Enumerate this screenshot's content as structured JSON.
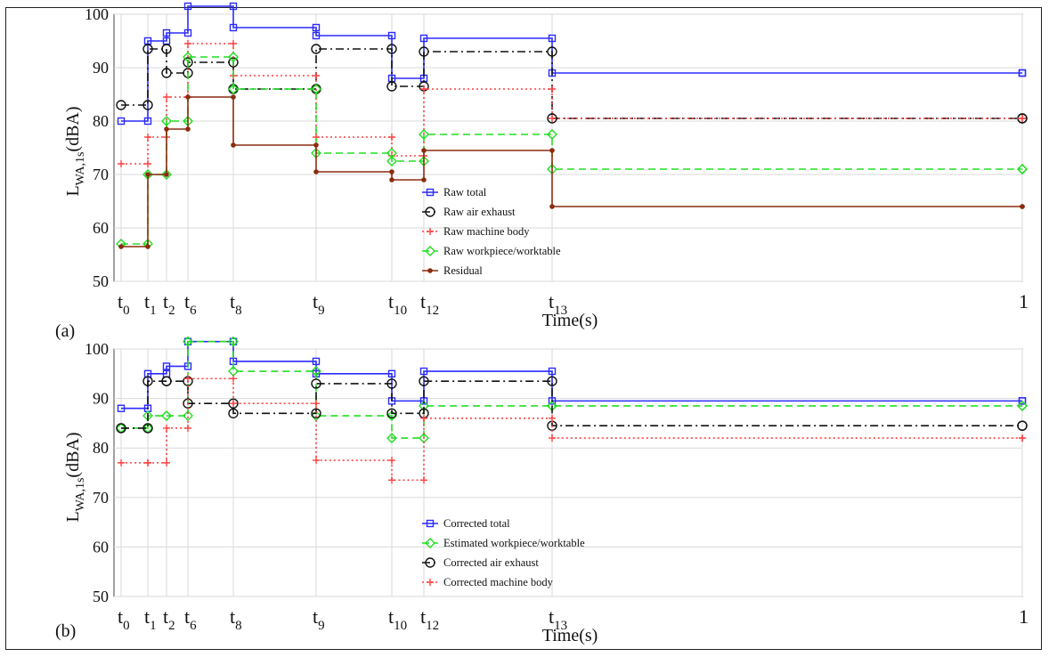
{
  "chart_data": [
    {
      "type": "line",
      "panel_label": "(a)",
      "xlabel": "Time(s)",
      "ylabel_main": "L",
      "ylabel_sub": "WA,1s",
      "ylabel_unit": "(dBA)",
      "ylim": [
        50,
        100
      ],
      "yticks": [
        "50",
        "60",
        "70",
        "80",
        "90",
        "100"
      ],
      "xtick_labels": [
        {
          "base": "t",
          "sub": "0"
        },
        {
          "base": "t",
          "sub": "1"
        },
        {
          "base": "t",
          "sub": "2"
        },
        {
          "base": "t",
          "sub": "6"
        },
        {
          "base": "t",
          "sub": "8"
        },
        {
          "base": "t",
          "sub": "9"
        },
        {
          "base": "t",
          "sub": "10"
        },
        {
          "base": "t",
          "sub": "12"
        },
        {
          "base": "t",
          "sub": "13"
        },
        {
          "base": "1",
          "sub": ""
        }
      ],
      "grid": true,
      "legend_position": "center",
      "series": [
        {
          "name": "Raw total",
          "color": "#2b2bff",
          "marker": "square",
          "style": "solid",
          "values": [
            80,
            95,
            96.5,
            101.5,
            97.5,
            96,
            88,
            95.5,
            89,
            89
          ]
        },
        {
          "name": "Raw air exhaust",
          "color": "#111111",
          "marker": "circle",
          "style": "dashdot",
          "values": [
            83,
            93.5,
            89,
            91,
            86,
            93.5,
            86.5,
            93,
            80.5,
            80.5
          ]
        },
        {
          "name": "Raw machine body",
          "color": "#ff4040",
          "marker": "plus",
          "style": "dotted",
          "values": [
            72,
            77,
            84.5,
            94.5,
            88.5,
            77,
            73.5,
            86,
            80.5,
            80.5
          ]
        },
        {
          "name": "Raw workpiece/worktable",
          "color": "#22dd22",
          "marker": "diamond",
          "style": "dashed",
          "values": [
            57,
            70,
            80,
            92,
            86,
            74,
            72.5,
            77.5,
            71,
            71
          ]
        },
        {
          "name": "Residual",
          "color": "#8b2c10",
          "marker": "dot",
          "style": "solid",
          "values": [
            56.5,
            70,
            78.5,
            84.5,
            75.5,
            70.5,
            69,
            74.5,
            64,
            64
          ]
        }
      ]
    },
    {
      "type": "line",
      "panel_label": "(b)",
      "xlabel": "Time(s)",
      "ylabel_main": "L",
      "ylabel_sub": "WA,1s",
      "ylabel_unit": "(dBA)",
      "ylim": [
        50,
        100
      ],
      "yticks": [
        "50",
        "60",
        "70",
        "80",
        "90",
        "100"
      ],
      "xtick_labels": [
        {
          "base": "t",
          "sub": "0"
        },
        {
          "base": "t",
          "sub": "1"
        },
        {
          "base": "t",
          "sub": "2"
        },
        {
          "base": "t",
          "sub": "6"
        },
        {
          "base": "t",
          "sub": "8"
        },
        {
          "base": "t",
          "sub": "9"
        },
        {
          "base": "t",
          "sub": "10"
        },
        {
          "base": "t",
          "sub": "12"
        },
        {
          "base": "t",
          "sub": "13"
        },
        {
          "base": "1",
          "sub": ""
        }
      ],
      "grid": true,
      "legend_position": "bottom-center",
      "series": [
        {
          "name": "Corrected total",
          "color": "#2b2bff",
          "marker": "square",
          "style": "solid",
          "values": [
            88,
            95,
            96.5,
            101.5,
            97.5,
            95,
            89.5,
            95.5,
            89.5,
            89.5
          ]
        },
        {
          "name": "Estimated workpiece/worktable",
          "color": "#22dd22",
          "marker": "diamond",
          "style": "dashed",
          "values": [
            84,
            86.5,
            86.5,
            101.5,
            95.5,
            86.5,
            82,
            88.5,
            88.5,
            88.5
          ]
        },
        {
          "name": "Corrected air exhaust",
          "color": "#111111",
          "marker": "circle",
          "style": "dashdot",
          "values": [
            84,
            93.5,
            93.5,
            89,
            87,
            93,
            87,
            93.5,
            84.5,
            84.5
          ]
        },
        {
          "name": "Corrected machine body",
          "color": "#ff4040",
          "marker": "plus",
          "style": "dotted",
          "values": [
            77,
            77,
            84,
            94,
            89,
            77.5,
            73.5,
            86,
            82,
            82
          ]
        }
      ]
    }
  ]
}
